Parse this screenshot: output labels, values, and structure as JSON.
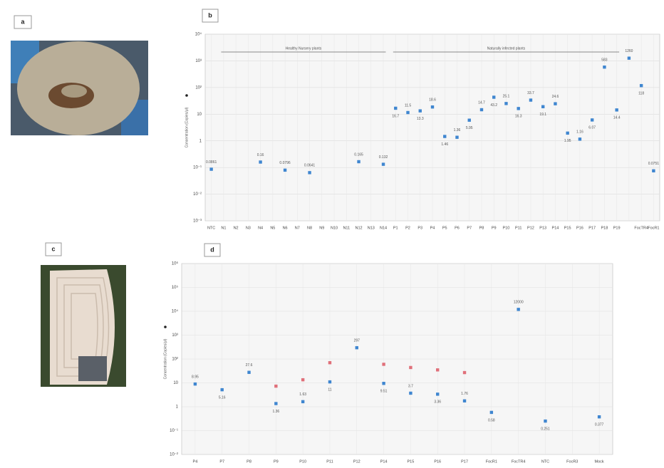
{
  "panels": [
    "a",
    "b",
    "c",
    "d"
  ],
  "chart_data": [
    {
      "type": "scatter",
      "y_label": "Concentration (Copies/μl)",
      "log_scale": true,
      "grid": true,
      "annotations": [
        "Healthy Nursery plants",
        "Naturally infected plants"
      ],
      "categories": [
        "NTC",
        "N1",
        "N2",
        "N3",
        "N4",
        "N5",
        "N6",
        "N7",
        "N8",
        "N9",
        "N10",
        "N11",
        "N12",
        "N13",
        "N14",
        "P1",
        "P2",
        "P3",
        "P4",
        "P5",
        "P6",
        "P7",
        "P8",
        "P9",
        "P10",
        "P11",
        "P12",
        "P13",
        "P14",
        "P15",
        "P16",
        "P17",
        "P18",
        "P19",
        null,
        "FocTR4",
        "FocR1"
      ],
      "values": [
        0.0861,
        null,
        null,
        null,
        0.16,
        null,
        0.0796,
        null,
        0.0641,
        null,
        null,
        null,
        0.165,
        null,
        0.132,
        16.7,
        11.5,
        13.3,
        18.6,
        1.46,
        1.36,
        5.95,
        14.7,
        43.2,
        25.1,
        16.3,
        33.7,
        19.1,
        24.6,
        1.95,
        1.16,
        6.07,
        583,
        14.4,
        1260,
        118,
        0.0751
      ],
      "color": "#3f86d0",
      "ylim": [
        0.001,
        10000
      ],
      "yticks": [
        {
          "value": 0.001,
          "label": "10⁻³"
        },
        {
          "value": 0.01,
          "label": "10⁻²"
        },
        {
          "value": 0.1,
          "label": "10⁻¹"
        },
        1,
        10,
        {
          "value": 100,
          "label": "10²"
        },
        {
          "value": 1000,
          "label": "10³"
        },
        {
          "value": 10000,
          "label": "10⁴"
        }
      ]
    },
    {
      "type": "scatter",
      "y_label": "Concentration (Copies/μl)",
      "log_scale": true,
      "grid": true,
      "categories": [
        "P4",
        "P7",
        "P8",
        "P9",
        "P10",
        "P11",
        "P12",
        "P14",
        "P15",
        "P16",
        "P17",
        "FocR1",
        "FocTR4",
        "NTC",
        "FocR3",
        "Mock"
      ],
      "series": [
        {
          "color": "#3f86d0",
          "values": [
            8.95,
            5.16,
            27.6,
            1.36,
            1.63,
            11,
            297,
            9.51,
            3.7,
            3.36,
            1.76,
            0.58,
            12000,
            0.251,
            null,
            0.377
          ]
        },
        {
          "color": "#e0707a",
          "values": [
            null,
            null,
            null,
            7.3,
            13.5,
            70,
            null,
            60,
            44,
            35,
            27,
            null,
            null,
            null,
            null,
            null
          ]
        }
      ],
      "ylim": [
        0.01,
        1000000
      ],
      "yticks": [
        {
          "value": 0.01,
          "label": "10⁻²"
        },
        {
          "value": 0.1,
          "label": "10⁻¹"
        },
        1,
        10,
        {
          "value": 100,
          "label": "10²"
        },
        {
          "value": 1000,
          "label": "10³"
        },
        {
          "value": 10000,
          "label": "10⁴"
        },
        {
          "value": 100000,
          "label": "10⁵"
        },
        {
          "value": 1000000,
          "label": "10⁶"
        }
      ]
    }
  ]
}
